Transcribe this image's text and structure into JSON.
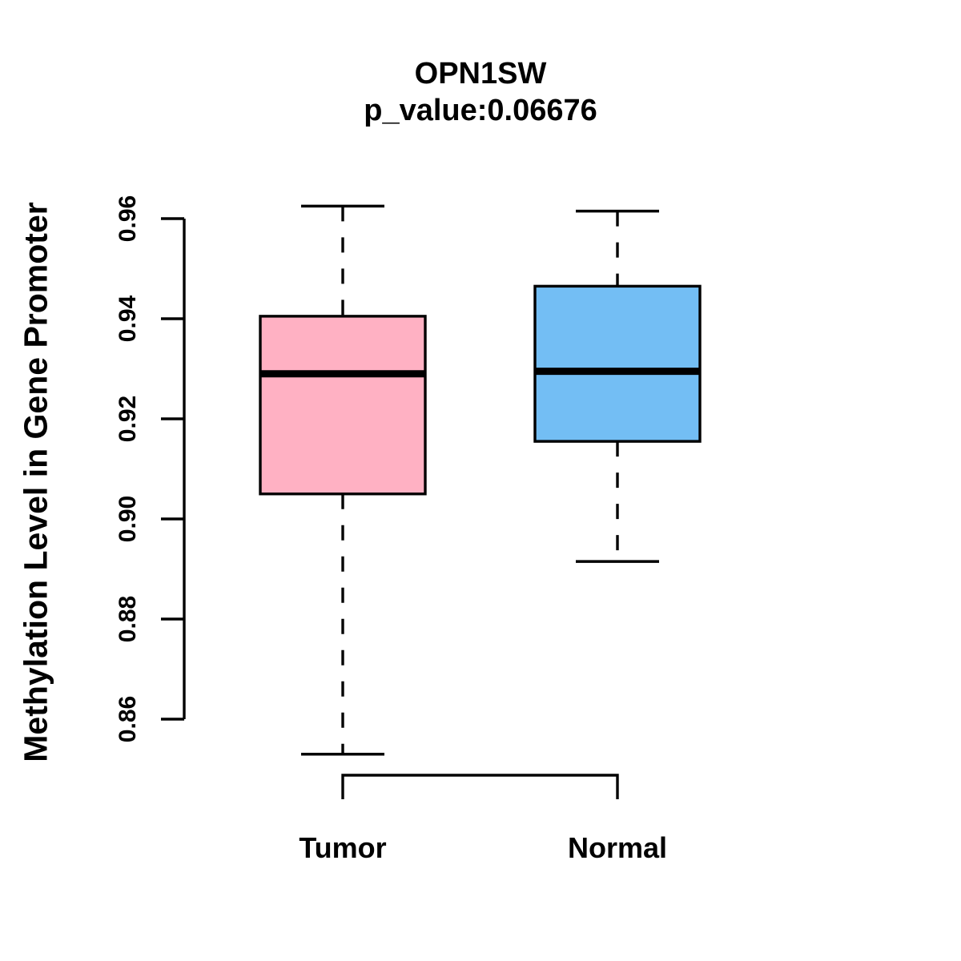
{
  "title": "OPN1SW",
  "subtitle": "p_value:0.06676",
  "ylabel": "Methylation Level in Gene Promoter",
  "colors": {
    "tumor_fill": "#FFB1C3",
    "normal_fill": "#73BEF4",
    "line": "#000000",
    "background": "#FFFFFF"
  },
  "chart_data": {
    "type": "boxplot",
    "title": "OPN1SW",
    "subtitle": "p_value:0.06676",
    "ylabel": "Methylation Level in Gene Promoter",
    "xlabel": "",
    "categories": [
      "Tumor",
      "Normal"
    ],
    "yticks": [
      0.86,
      0.88,
      0.9,
      0.92,
      0.94,
      0.96
    ],
    "ytick_labels": [
      "0.86",
      "0.88",
      "0.90",
      "0.92",
      "0.94",
      "0.96"
    ],
    "ylim": [
      0.853,
      0.963
    ],
    "grid": false,
    "legend": null,
    "series": [
      {
        "name": "Tumor",
        "fill": "#FFB1C3",
        "lower_whisker": 0.853,
        "q1": 0.905,
        "median": 0.929,
        "q3": 0.9405,
        "upper_whisker": 0.9625
      },
      {
        "name": "Normal",
        "fill": "#73BEF4",
        "lower_whisker": 0.8915,
        "q1": 0.9155,
        "median": 0.9295,
        "q3": 0.9465,
        "upper_whisker": 0.9615
      }
    ]
  }
}
